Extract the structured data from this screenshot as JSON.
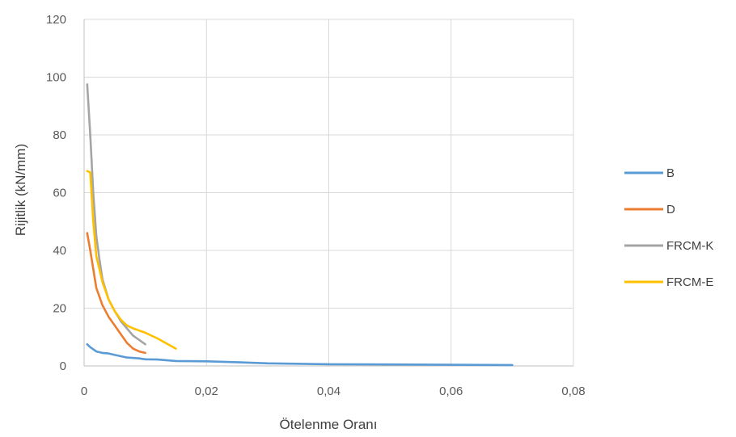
{
  "chart_data": {
    "type": "line",
    "title": "",
    "xlabel": "Ötelenme Oranı",
    "ylabel": "Rijitlik (kN/mm)",
    "xlim": [
      0,
      0.08
    ],
    "ylim": [
      0,
      120
    ],
    "x_ticks": [
      0,
      0.02,
      0.04,
      0.06,
      0.08
    ],
    "x_tick_labels": [
      "0",
      "0,02",
      "0,04",
      "0,06",
      "0,08"
    ],
    "y_ticks": [
      0,
      20,
      40,
      60,
      80,
      100,
      120
    ],
    "y_tick_labels": [
      "0",
      "20",
      "40",
      "60",
      "80",
      "100",
      "120"
    ],
    "grid": true,
    "legend_position": "right",
    "series": [
      {
        "name": "B",
        "color": "#5b9bd5",
        "points": [
          [
            0.0005,
            7.5
          ],
          [
            0.001,
            6.5
          ],
          [
            0.002,
            5.0
          ],
          [
            0.003,
            4.5
          ],
          [
            0.004,
            4.3
          ],
          [
            0.005,
            3.8
          ],
          [
            0.007,
            2.9
          ],
          [
            0.009,
            2.6
          ],
          [
            0.01,
            2.3
          ],
          [
            0.012,
            2.2
          ],
          [
            0.015,
            1.7
          ],
          [
            0.02,
            1.6
          ],
          [
            0.025,
            1.3
          ],
          [
            0.03,
            0.9
          ],
          [
            0.04,
            0.6
          ],
          [
            0.05,
            0.5
          ],
          [
            0.06,
            0.4
          ],
          [
            0.07,
            0.3
          ]
        ]
      },
      {
        "name": "D",
        "color": "#ed7d31",
        "points": [
          [
            0.0005,
            46
          ],
          [
            0.001,
            40
          ],
          [
            0.002,
            27
          ],
          [
            0.003,
            21
          ],
          [
            0.004,
            17
          ],
          [
            0.005,
            14
          ],
          [
            0.006,
            11
          ],
          [
            0.007,
            8
          ],
          [
            0.008,
            6
          ],
          [
            0.009,
            5
          ],
          [
            0.01,
            4.5
          ]
        ]
      },
      {
        "name": "FRCM-K",
        "color": "#a5a5a5",
        "points": [
          [
            0.0005,
            97.5
          ],
          [
            0.001,
            80
          ],
          [
            0.0015,
            60
          ],
          [
            0.002,
            45
          ],
          [
            0.0025,
            37
          ],
          [
            0.003,
            30
          ],
          [
            0.004,
            23
          ],
          [
            0.005,
            19
          ],
          [
            0.006,
            15.5
          ],
          [
            0.007,
            13
          ],
          [
            0.008,
            10.5
          ],
          [
            0.009,
            9
          ],
          [
            0.01,
            7.5
          ]
        ]
      },
      {
        "name": "FRCM-E",
        "color": "#ffc000",
        "points": [
          [
            0.0005,
            67.5
          ],
          [
            0.001,
            67
          ],
          [
            0.0015,
            50
          ],
          [
            0.002,
            38
          ],
          [
            0.003,
            29
          ],
          [
            0.004,
            23
          ],
          [
            0.005,
            19
          ],
          [
            0.006,
            16
          ],
          [
            0.007,
            14
          ],
          [
            0.008,
            13
          ],
          [
            0.01,
            11.5
          ],
          [
            0.012,
            9.5
          ],
          [
            0.015,
            6
          ]
        ]
      }
    ]
  }
}
